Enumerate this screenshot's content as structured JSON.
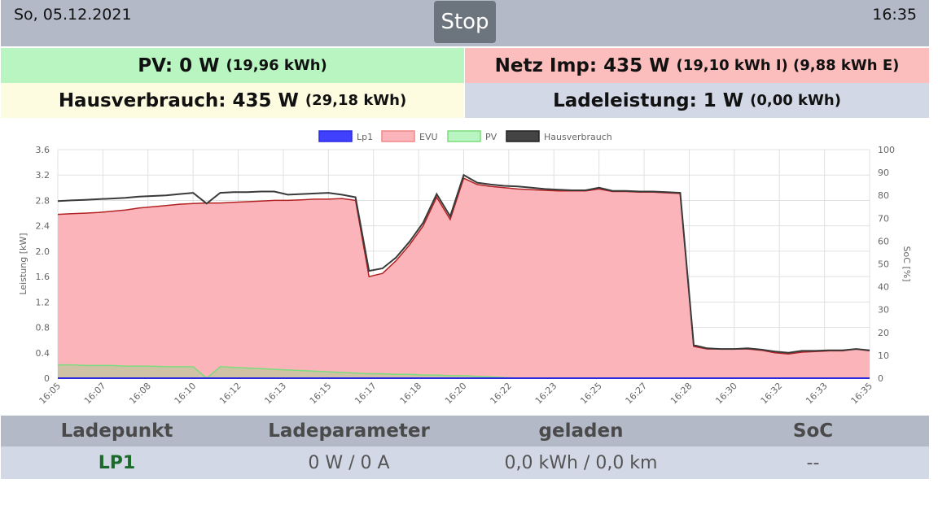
{
  "header": {
    "date": "So, 05.12.2021",
    "time": "16:35",
    "stop_label": "Stop"
  },
  "tiles": {
    "pv": {
      "label": "PV: 0 W",
      "sub": "(19,96 kWh)"
    },
    "netz": {
      "label": "Netz Imp: 435 W",
      "sub": "(19,10 kWh I) (9,88 kWh E)"
    },
    "haus": {
      "label": "Hausverbrauch: 435 W",
      "sub": "(29,18 kWh)"
    },
    "lade": {
      "label": "Ladeleistung: 1 W",
      "sub": "(0,00 kWh)"
    }
  },
  "colors": {
    "evu_fill": "#fcb4bb",
    "evu_line": "#b22222",
    "haus_line": "#3a3a3a",
    "pv_line": "#7ddc7d",
    "lp1_line": "#2a2ae0"
  },
  "chart_data": {
    "type": "area",
    "title": "",
    "xlabel": "",
    "ylabel": "Leistung [kW]",
    "y2label": "SoC [%]",
    "ylim": [
      0,
      3.6
    ],
    "y2lim": [
      0,
      100
    ],
    "yticks": [
      "0",
      "0.4",
      "0.8",
      "1.2",
      "1.6",
      "2.0",
      "2.4",
      "2.8",
      "3.2",
      "3.6"
    ],
    "y2ticks": [
      "0",
      "10",
      "20",
      "30",
      "40",
      "50",
      "60",
      "70",
      "80",
      "90",
      "100"
    ],
    "xticks": [
      "16:05",
      "16:07",
      "16:08",
      "16:10",
      "16:12",
      "16:13",
      "16:15",
      "16:17",
      "16:18",
      "16:20",
      "16:22",
      "16:23",
      "16:25",
      "16:27",
      "16:28",
      "16:30",
      "16:32",
      "16:33",
      "16:35"
    ],
    "legend": [
      "Lp1",
      "EVU",
      "PV",
      "Hausverbrauch"
    ],
    "legend_position": "top",
    "x": [
      0,
      1,
      2,
      3,
      4,
      5,
      6,
      7,
      8,
      9,
      10,
      11,
      12,
      13,
      14,
      15,
      16,
      17,
      18,
      19,
      20,
      21,
      22,
      23,
      24,
      25,
      26,
      27,
      28,
      29,
      30,
      31,
      32,
      33,
      34,
      35,
      36,
      37,
      38,
      39,
      40,
      41,
      42,
      43,
      44,
      45,
      46,
      47,
      48,
      49,
      50,
      51,
      52,
      53,
      54,
      55,
      56,
      57,
      58,
      59,
      60
    ],
    "series": [
      {
        "name": "Hausverbrauch",
        "values": [
          2.79,
          2.8,
          2.81,
          2.82,
          2.83,
          2.84,
          2.86,
          2.87,
          2.88,
          2.9,
          2.92,
          2.75,
          2.92,
          2.93,
          2.93,
          2.94,
          2.94,
          2.89,
          2.9,
          2.91,
          2.92,
          2.89,
          2.85,
          1.69,
          1.73,
          1.9,
          2.15,
          2.45,
          2.9,
          2.55,
          3.2,
          3.08,
          3.05,
          3.03,
          3.02,
          3.0,
          2.98,
          2.97,
          2.96,
          2.96,
          3.0,
          2.95,
          2.95,
          2.94,
          2.94,
          2.93,
          2.92,
          0.52,
          0.47,
          0.46,
          0.46,
          0.47,
          0.45,
          0.42,
          0.4,
          0.43,
          0.43,
          0.44,
          0.44,
          0.46,
          0.44
        ]
      },
      {
        "name": "EVU",
        "values": [
          2.58,
          2.59,
          2.6,
          2.61,
          2.63,
          2.65,
          2.68,
          2.7,
          2.72,
          2.74,
          2.75,
          2.76,
          2.76,
          2.77,
          2.78,
          2.79,
          2.8,
          2.8,
          2.81,
          2.82,
          2.82,
          2.83,
          2.8,
          1.6,
          1.65,
          1.85,
          2.1,
          2.4,
          2.85,
          2.5,
          3.15,
          3.05,
          3.02,
          3.0,
          2.98,
          2.97,
          2.96,
          2.95,
          2.95,
          2.95,
          2.98,
          2.94,
          2.94,
          2.93,
          2.93,
          2.92,
          2.91,
          0.5,
          0.46,
          0.46,
          0.46,
          0.46,
          0.44,
          0.4,
          0.38,
          0.41,
          0.42,
          0.43,
          0.43,
          0.46,
          0.43
        ]
      },
      {
        "name": "PV",
        "values": [
          0.21,
          0.21,
          0.2,
          0.2,
          0.2,
          0.19,
          0.19,
          0.19,
          0.18,
          0.18,
          0.18,
          0.0,
          0.18,
          0.17,
          0.16,
          0.15,
          0.14,
          0.13,
          0.12,
          0.11,
          0.1,
          0.09,
          0.08,
          0.07,
          0.07,
          0.06,
          0.06,
          0.05,
          0.05,
          0.04,
          0.04,
          0.03,
          0.02,
          0.01,
          0.0,
          0,
          0,
          0,
          0,
          0,
          0,
          0,
          0,
          0,
          0,
          0,
          0,
          0,
          0,
          0,
          0,
          0,
          0,
          0,
          0,
          0,
          0,
          0,
          0,
          0,
          0
        ]
      },
      {
        "name": "Lp1",
        "values": [
          0,
          0,
          0,
          0,
          0,
          0,
          0,
          0,
          0,
          0,
          0,
          0,
          0,
          0,
          0,
          0,
          0,
          0,
          0,
          0,
          0,
          0,
          0,
          0,
          0,
          0,
          0,
          0,
          0,
          0,
          0,
          0,
          0,
          0,
          0,
          0,
          0,
          0,
          0,
          0,
          0,
          0,
          0,
          0,
          0,
          0,
          0,
          0,
          0,
          0,
          0,
          0,
          0,
          0,
          0,
          0,
          0,
          0,
          0,
          0,
          0
        ]
      }
    ]
  },
  "lp_table": {
    "headers": [
      "Ladepunkt",
      "Ladeparameter",
      "geladen",
      "SoC"
    ],
    "row": {
      "name": "LP1",
      "params": "0 W / 0 A",
      "charged": "0,0 kWh / 0,0 km",
      "soc": "--"
    }
  }
}
